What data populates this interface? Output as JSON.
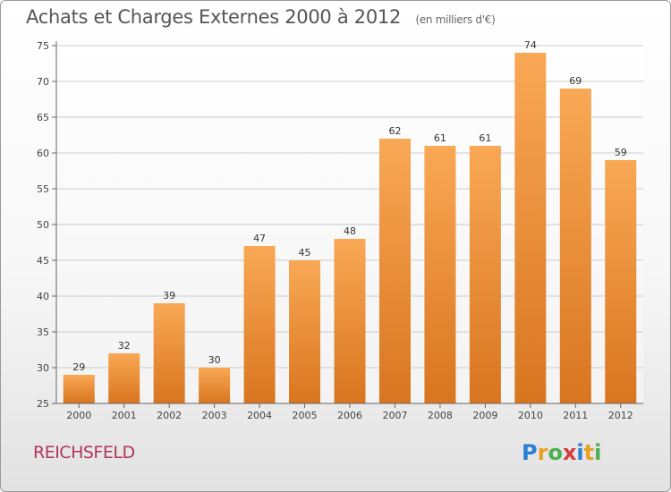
{
  "title": "Achats et Charges Externes 2000 à 2012",
  "unit_note": "(en milliers d'€)",
  "commune": "REICHSFELD",
  "logo": {
    "letters": [
      "P",
      "r",
      "o",
      "x",
      "i",
      "t",
      "i"
    ],
    "colors": [
      "#2a7fd4",
      "#e8a020",
      "#4caf50",
      "#d63b3b",
      "#2a7fd4",
      "#e8a020",
      "#4caf50"
    ]
  },
  "colors": {
    "bar_light": "#f9a855",
    "bar_dark": "#d9751f",
    "grid": "#cccccc",
    "axis": "#666666"
  },
  "chart_data": {
    "type": "bar",
    "title": "Achats et Charges Externes 2000 à 2012",
    "xlabel": "",
    "ylabel": "",
    "categories": [
      "2000",
      "2001",
      "2002",
      "2003",
      "2004",
      "2005",
      "2006",
      "2007",
      "2008",
      "2009",
      "2010",
      "2011",
      "2012"
    ],
    "values": [
      29,
      32,
      39,
      30,
      47,
      45,
      48,
      62,
      61,
      61,
      74,
      69,
      59
    ],
    "ylim": [
      25,
      75
    ],
    "yticks": [
      25,
      30,
      35,
      40,
      45,
      50,
      55,
      60,
      65,
      70,
      75
    ],
    "grid": true,
    "data_labels": true
  }
}
